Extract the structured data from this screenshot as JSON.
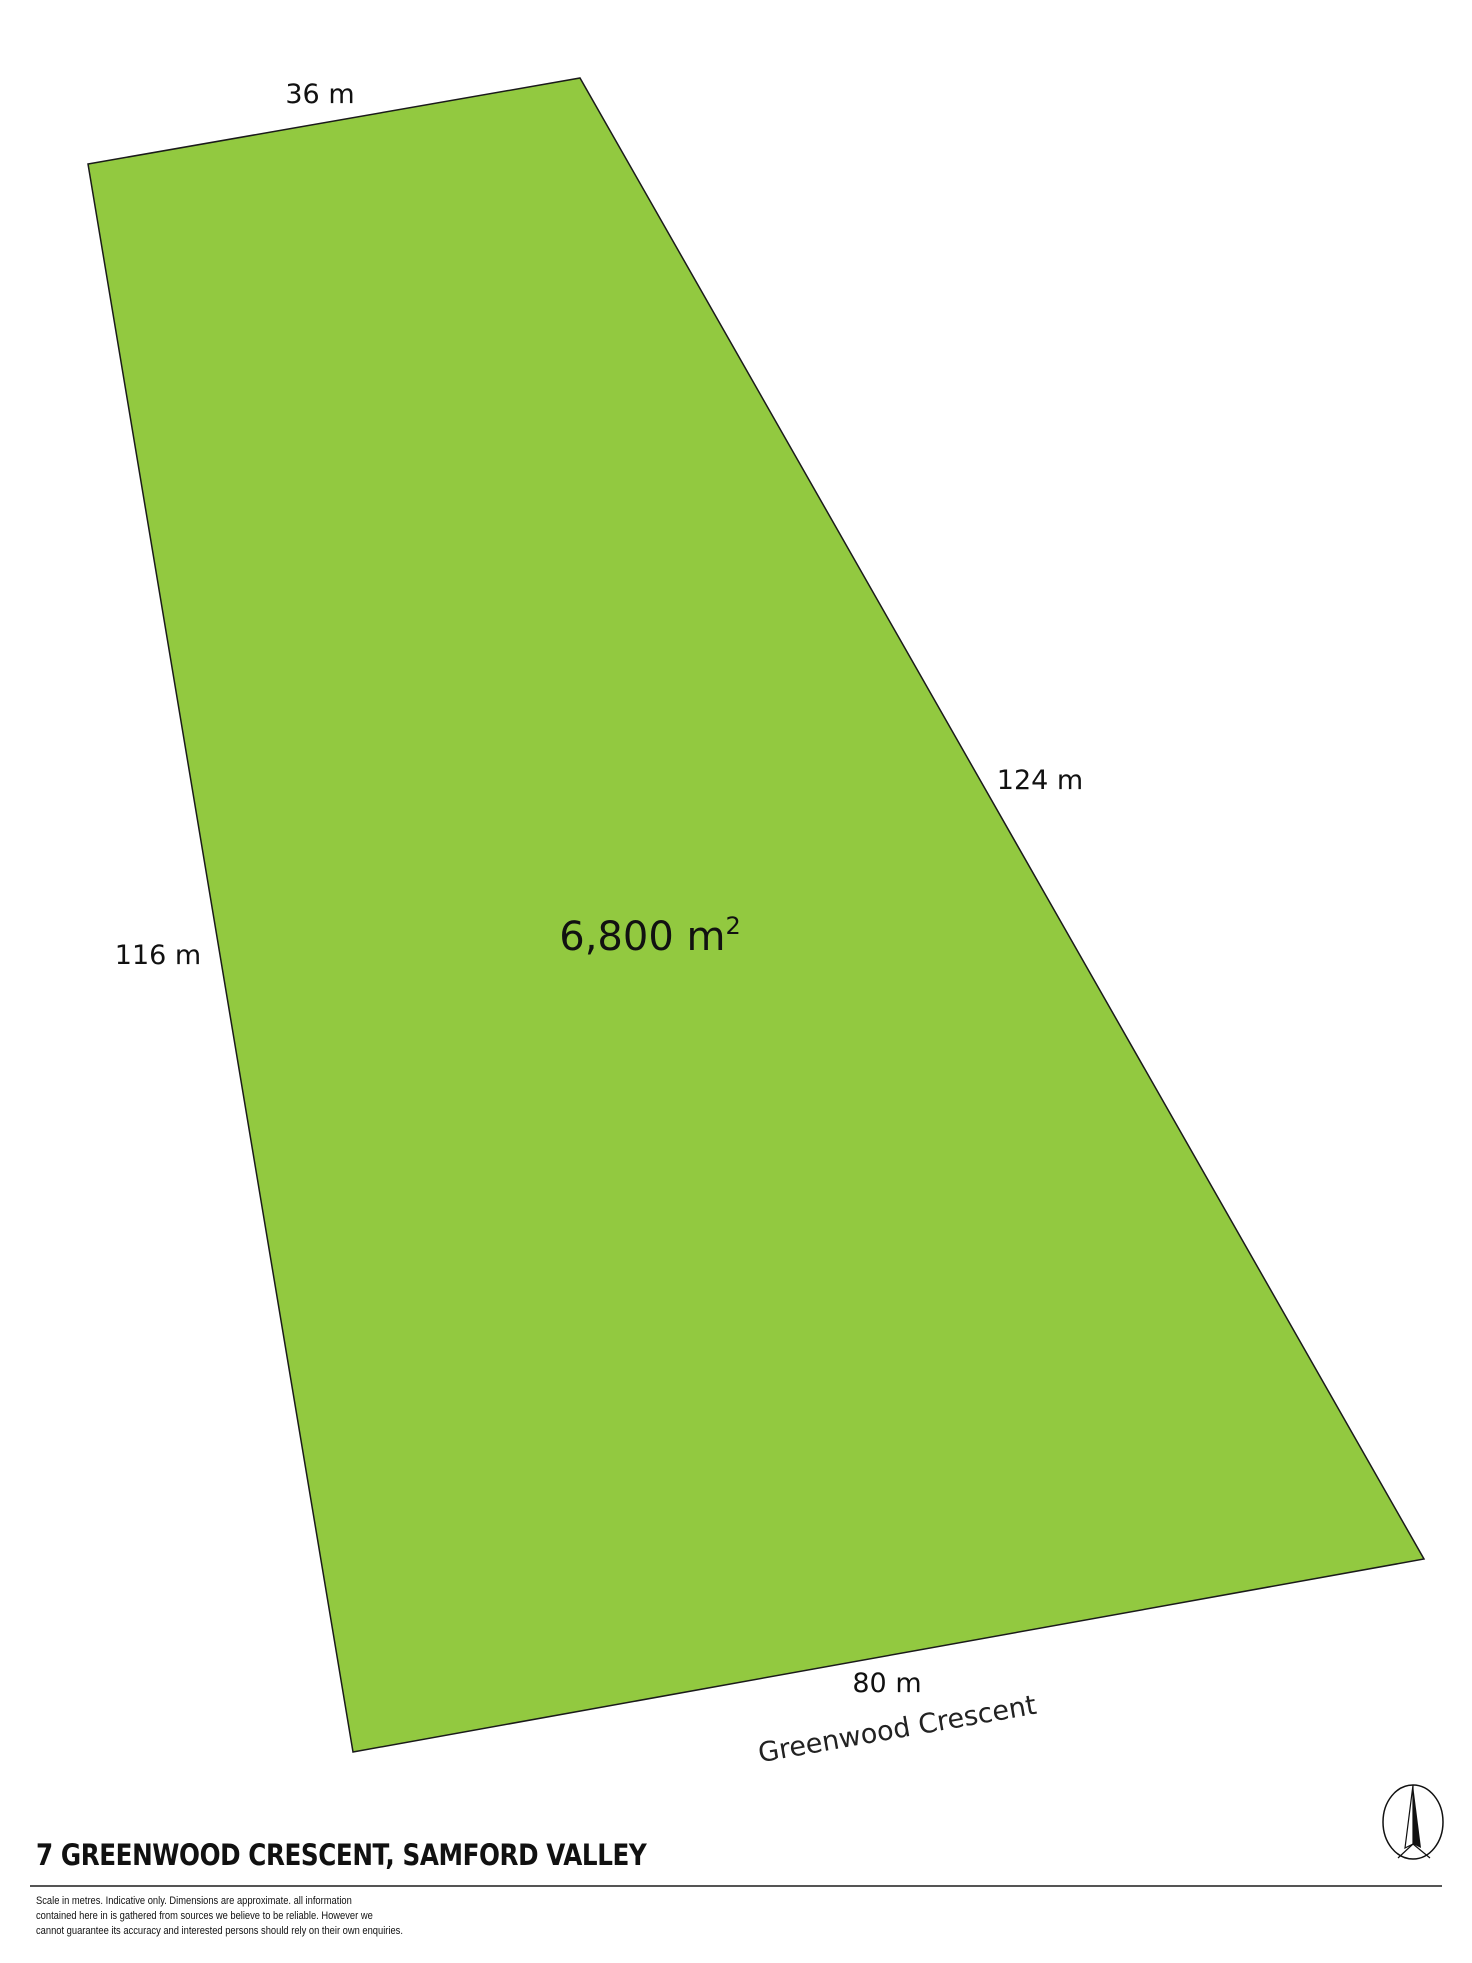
{
  "plan": {
    "fill_color": "#92c940",
    "outline_color": "#1a1a1a",
    "area_value": "6,800 m",
    "area_superscript": "2",
    "dimensions": {
      "top": "36 m",
      "right": "124 m",
      "left": "116 m",
      "bottom": "80 m"
    },
    "street_name": "Greenwood Crescent"
  },
  "footer": {
    "title": "7 GREENWOOD CRESCENT, SAMFORD VALLEY",
    "disclaimer": [
      "Scale in metres. Indicative only. Dimensions are approximate. all information",
      "contained here in is gathered from sources we believe to be reliable. However we",
      "cannot guarantee its accuracy and interested persons should rely on their own enquiries."
    ],
    "compass_icon": "north-arrow-icon"
  }
}
